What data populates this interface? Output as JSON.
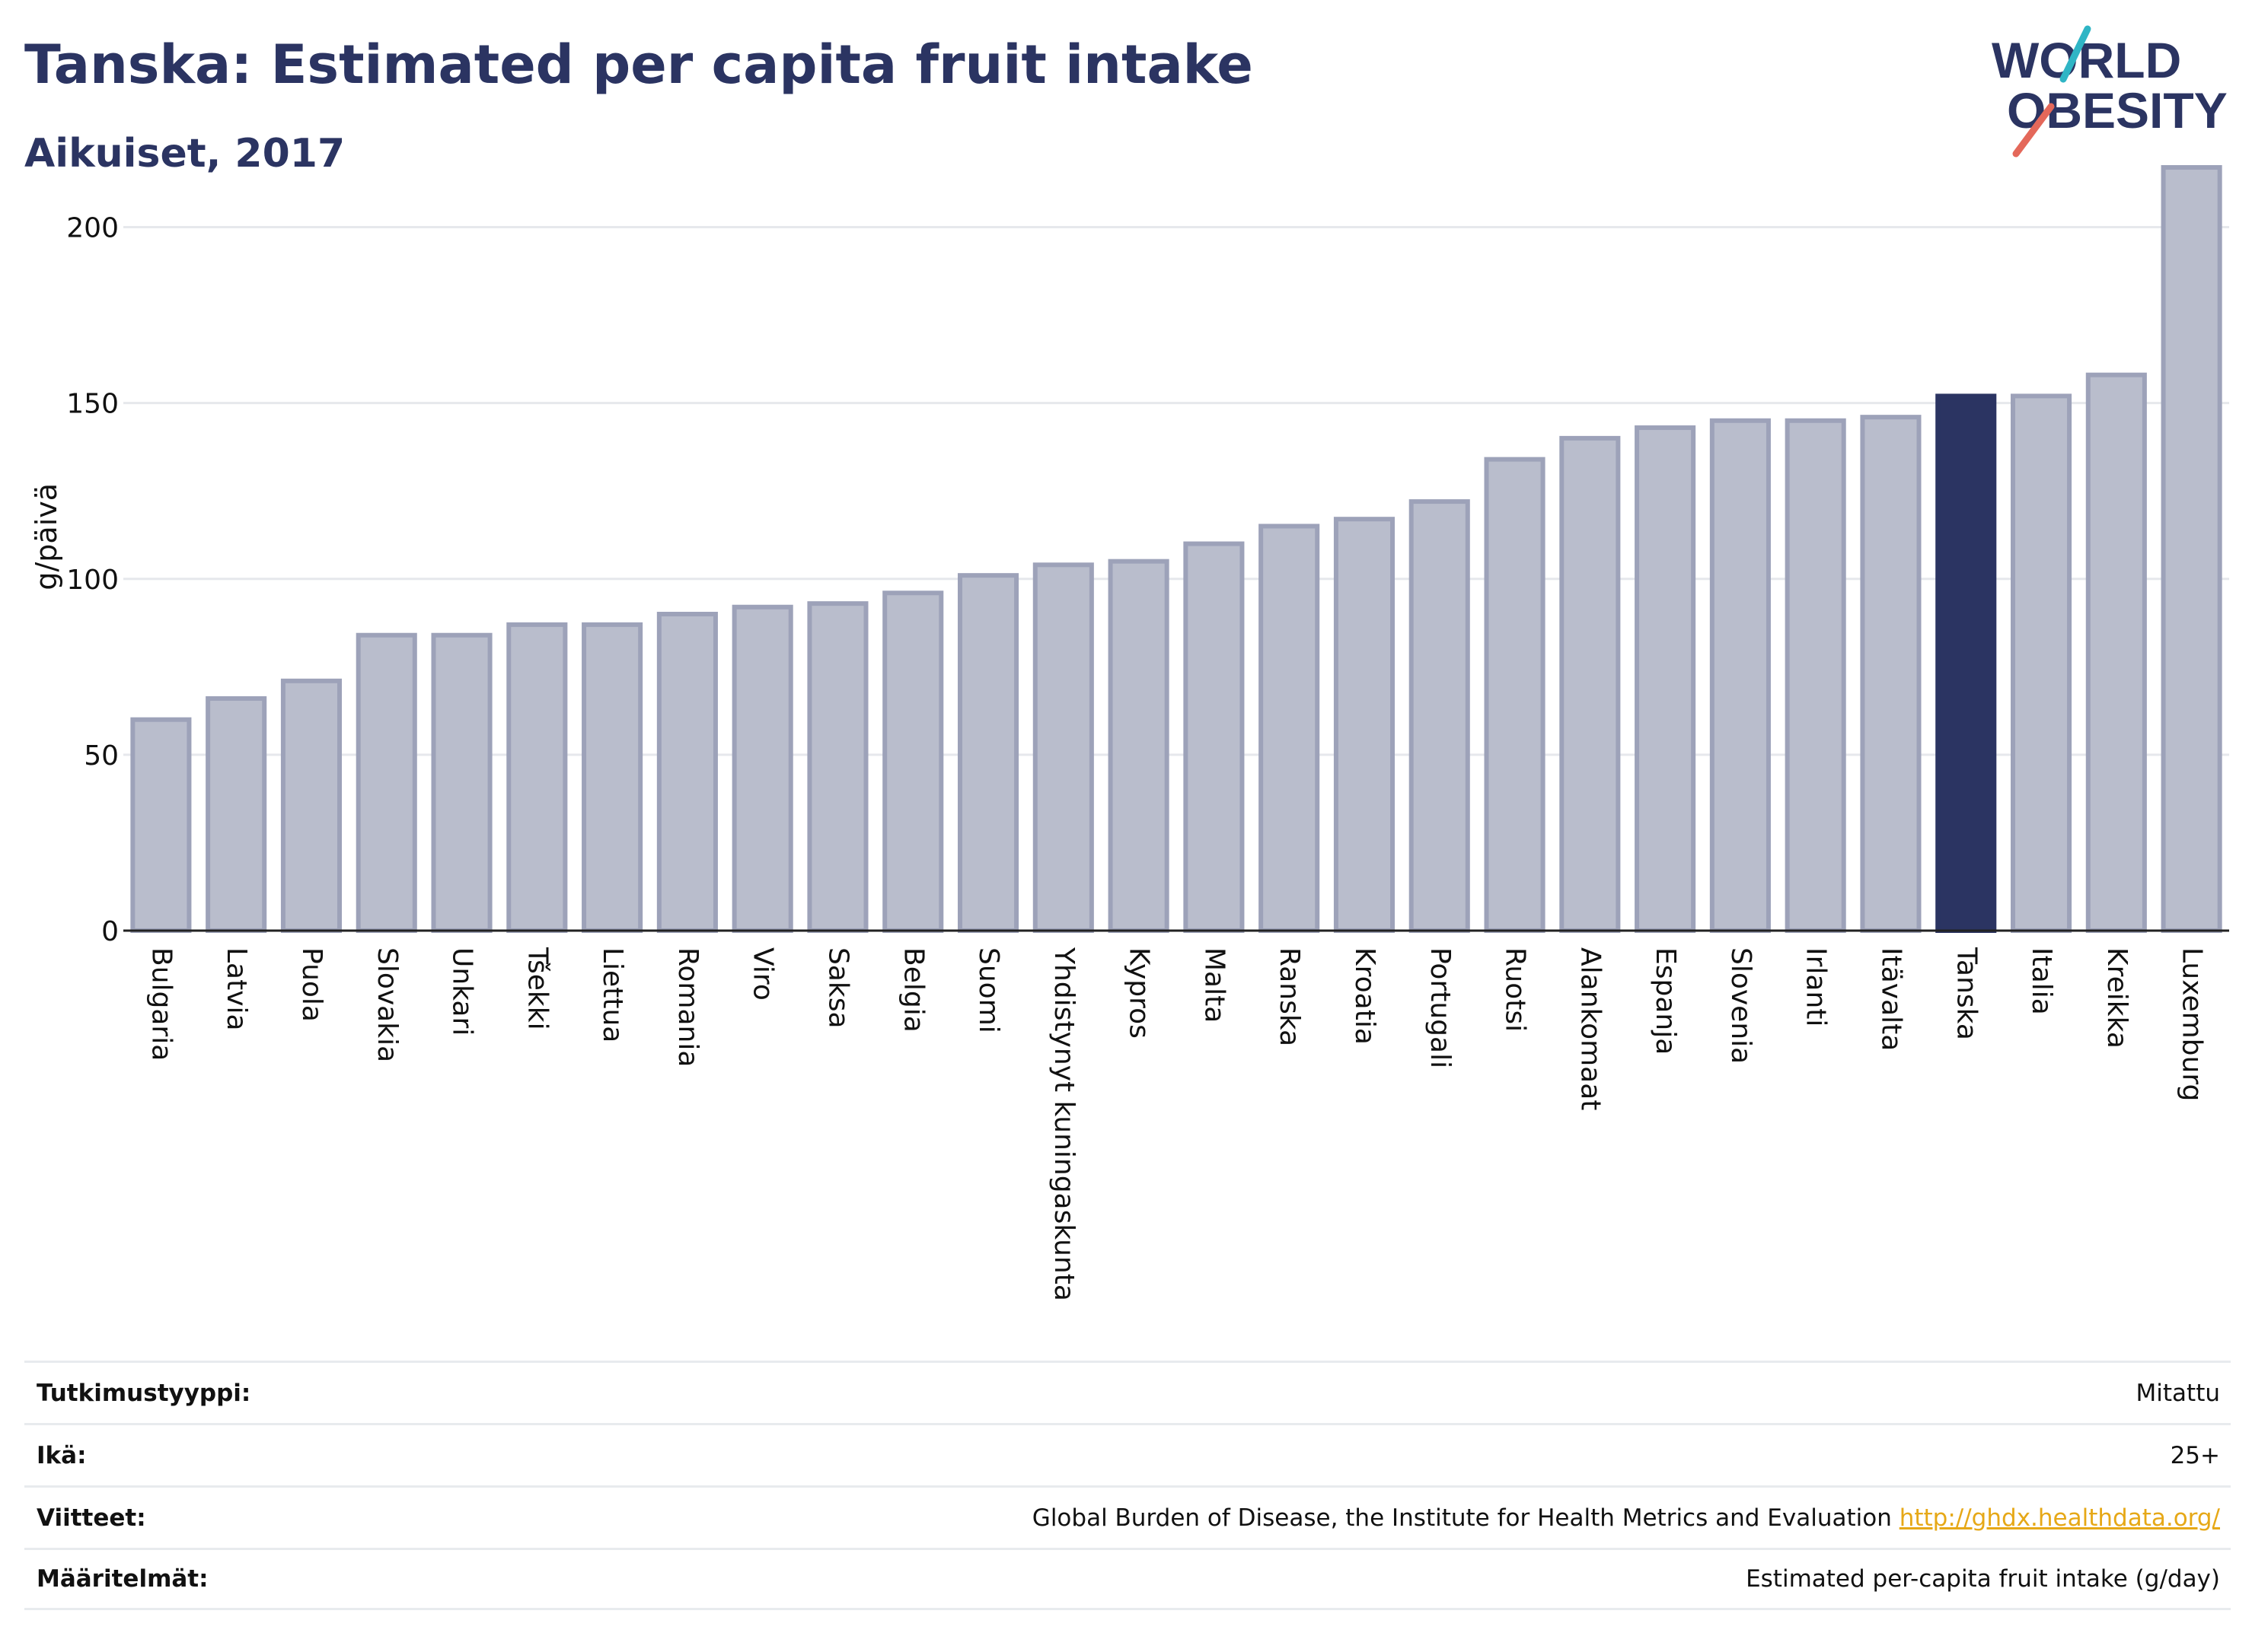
{
  "header": {
    "title": "Tanska: Estimated per capita fruit intake",
    "subtitle": "Aikuiset, 2017"
  },
  "logo": {
    "line1": "WORLD",
    "line2": "OBESITY"
  },
  "colors": {
    "bar": "#b9bdcc",
    "bar_stroke": "#9da2b9",
    "highlight": "#2b3462",
    "grid": "#e6e8ec",
    "text": "#2b3462",
    "link": "#e6a817",
    "logo_teal": "#2fb5c5",
    "logo_red": "#e4685a"
  },
  "chart_data": {
    "type": "bar",
    "ylabel": "g/päivä",
    "ylim": [
      0,
      225
    ],
    "yticks": [
      0,
      50,
      100,
      150,
      200
    ],
    "grid": true,
    "highlight": "Tanska",
    "categories": [
      "Bulgaria",
      "Latvia",
      "Puola",
      "Slovakia",
      "Unkari",
      "Tšekki",
      "Liettua",
      "Romania",
      "Viro",
      "Saksa",
      "Belgia",
      "Suomi",
      "Yhdistynyt kuningaskunta",
      "Kypros",
      "Malta",
      "Ranska",
      "Kroatia",
      "Portugali",
      "Ruotsi",
      "Alankomaat",
      "Espanja",
      "Slovenia",
      "Irlanti",
      "Itävalta",
      "Tanska",
      "Italia",
      "Kreikka",
      "Luxemburg"
    ],
    "values": [
      60,
      66,
      71,
      84,
      84,
      87,
      87,
      90,
      92,
      93,
      96,
      101,
      104,
      105,
      110,
      115,
      117,
      122,
      134,
      140,
      143,
      145,
      145,
      146,
      152,
      152,
      158,
      217
    ]
  },
  "meta": [
    {
      "key": "Tutkimustyyppi:",
      "value": "Mitattu"
    },
    {
      "key": "Ikä:",
      "value": "25+"
    },
    {
      "key": "Viitteet:",
      "value": "Global Burden of Disease, the Institute for Health Metrics and Evaluation",
      "link": "http://ghdx.healthdata.org/"
    },
    {
      "key": "Määritelmät:",
      "value": "Estimated per-capita fruit intake (g/day)"
    }
  ]
}
